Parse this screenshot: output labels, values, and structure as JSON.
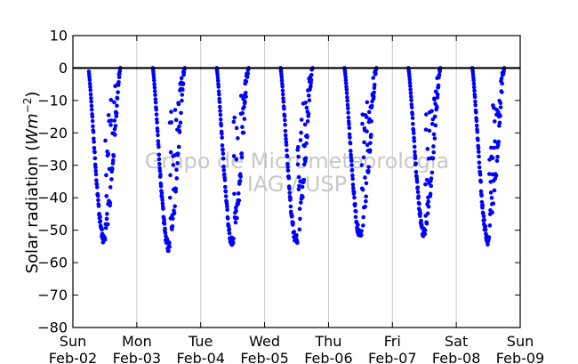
{
  "chart_data": {
    "type": "scatter",
    "title": "",
    "ylabel_main": "Solar radiation (",
    "ylabel_math": "Wm",
    "ylabel_exp": "−2",
    "ylabel_close": ")",
    "ylim": [
      -80,
      10
    ],
    "y_ticks": [
      10,
      0,
      -10,
      -20,
      -30,
      -40,
      -50,
      -60,
      -70,
      -80
    ],
    "xlim": [
      "Feb-02 00:00",
      "Feb-09 00:00"
    ],
    "x_ticks": [
      {
        "day": "Sun",
        "date": "Feb-02"
      },
      {
        "day": "Mon",
        "date": "Feb-03"
      },
      {
        "day": "Tue",
        "date": "Feb-04"
      },
      {
        "day": "Wed",
        "date": "Feb-05"
      },
      {
        "day": "Thu",
        "date": "Feb-06"
      },
      {
        "day": "Fri",
        "date": "Feb-07"
      },
      {
        "day": "Sat",
        "date": "Feb-08"
      },
      {
        "day": "Sun",
        "date": "Feb-09"
      }
    ],
    "grid": "vertical",
    "zero_line": true,
    "watermark": [
      "Grupo de Micrometeorologia",
      "IAG / USP"
    ],
    "series": [
      {
        "color": "#0000ff",
        "marker": "circle",
        "days": [
          {
            "date": "Feb-02",
            "start_hour": 6.0,
            "end_hour": 18.0,
            "peak_hour": 11.8,
            "peak": -53
          },
          {
            "date": "Feb-03",
            "start_hour": 6.0,
            "end_hour": 18.0,
            "peak_hour": 12.0,
            "peak": -55
          },
          {
            "date": "Feb-04",
            "start_hour": 6.0,
            "end_hour": 18.0,
            "peak_hour": 12.0,
            "peak": -54
          },
          {
            "date": "Feb-05",
            "start_hour": 6.0,
            "end_hour": 18.0,
            "peak_hour": 12.0,
            "peak": -53
          },
          {
            "date": "Feb-06",
            "start_hour": 6.0,
            "end_hour": 18.0,
            "peak_hour": 12.0,
            "peak": -52
          },
          {
            "date": "Feb-07",
            "start_hour": 6.0,
            "end_hour": 18.0,
            "peak_hour": 12.0,
            "peak": -51
          },
          {
            "date": "Feb-08",
            "start_hour": 6.0,
            "end_hour": 18.0,
            "peak_hour": 12.0,
            "peak": -53
          }
        ],
        "night_value": 0
      }
    ]
  }
}
